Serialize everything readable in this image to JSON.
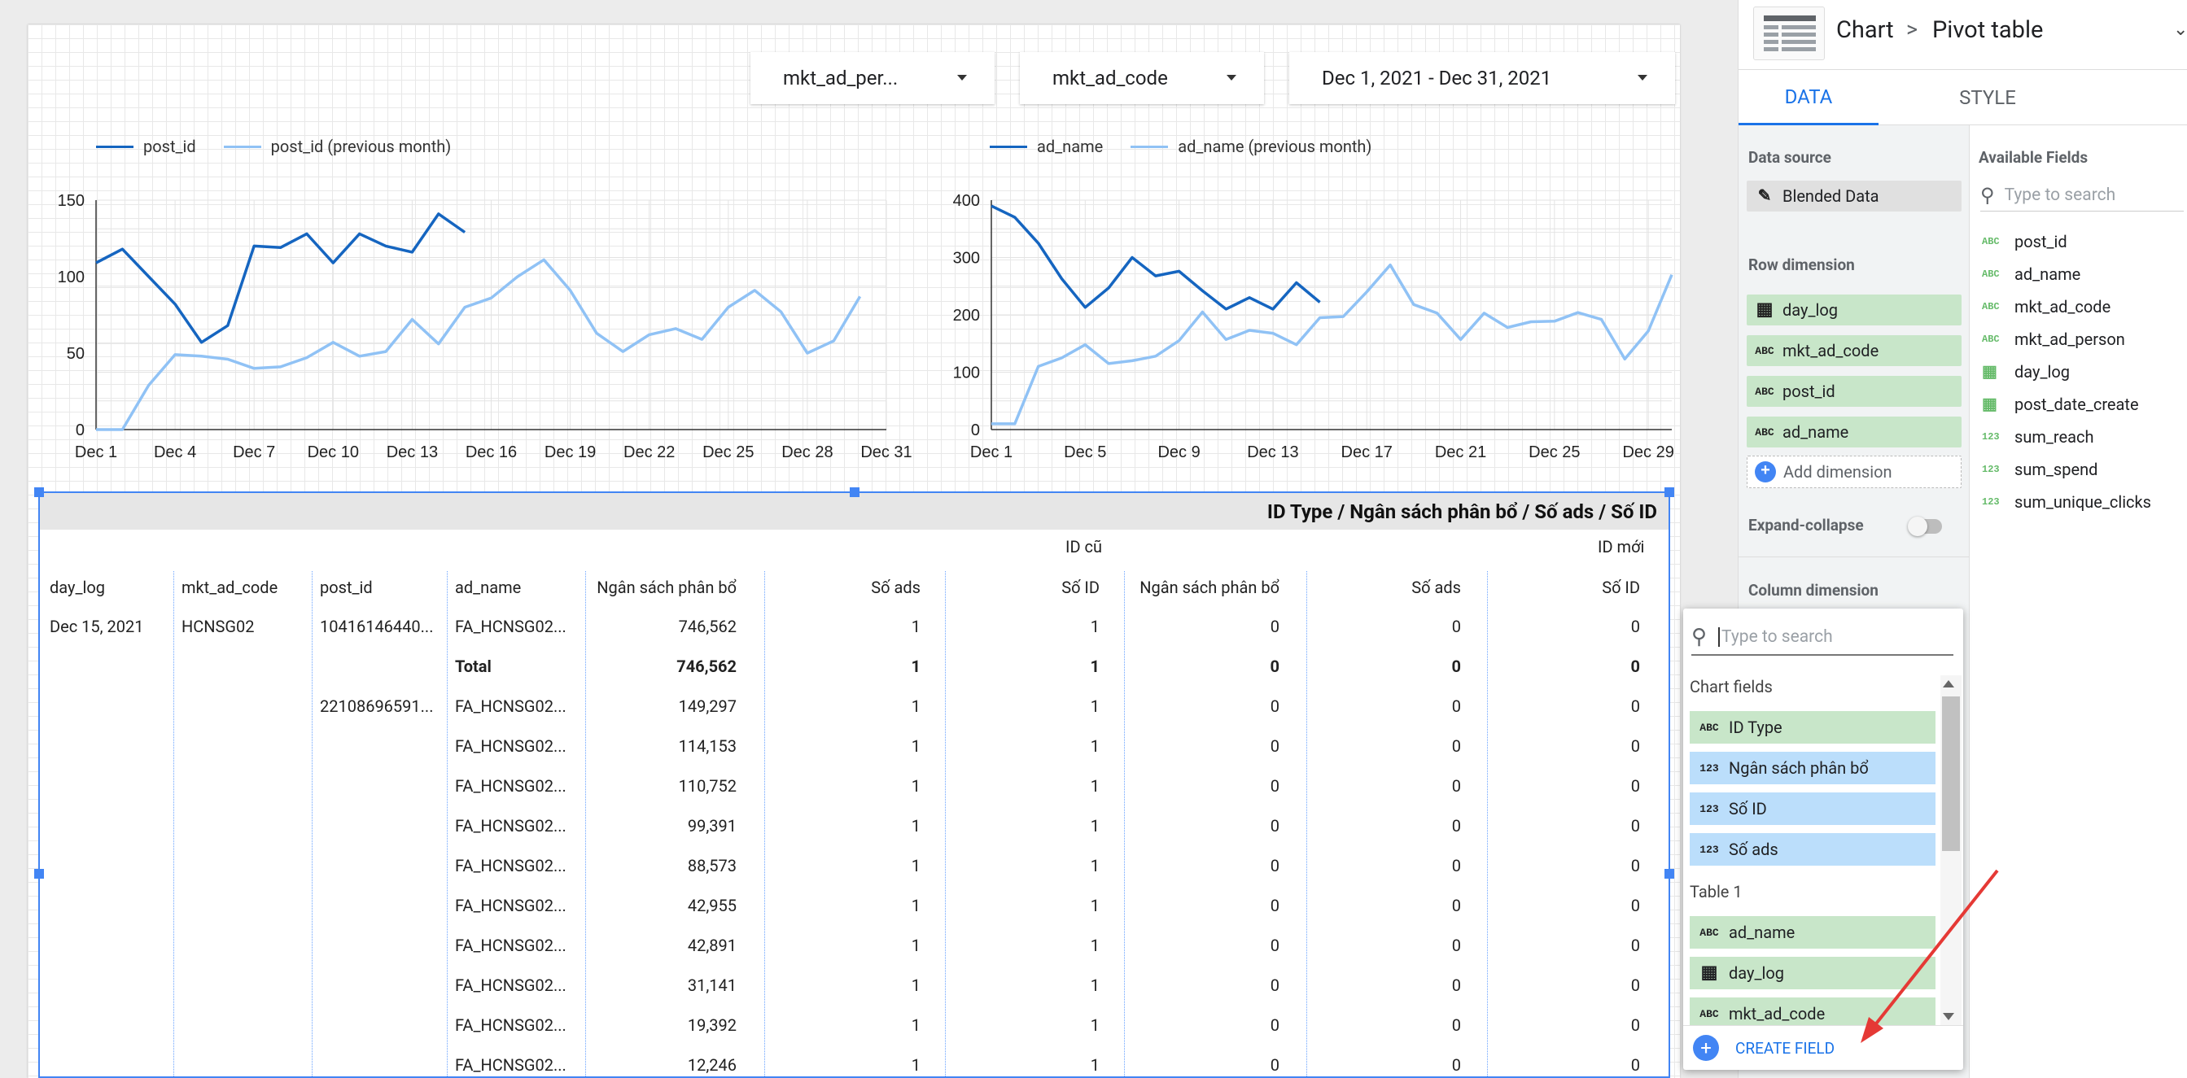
{
  "controls": {
    "person_filter": "mkt_ad_per...",
    "code_filter": "mkt_ad_code",
    "date_range": "Dec 1, 2021 - Dec 31, 2021"
  },
  "chart_data": [
    {
      "type": "line",
      "legend": [
        "post_id",
        "post_id (previous month)"
      ],
      "colors": [
        "#1565c0",
        "#90c2f5"
      ],
      "ylim": [
        0,
        150
      ],
      "yticks": [
        0,
        50,
        100,
        150
      ],
      "xticks": [
        "Dec 1",
        "Dec 4",
        "Dec 7",
        "Dec 10",
        "Dec 13",
        "Dec 16",
        "Dec 19",
        "Dec 22",
        "Dec 25",
        "Dec 28",
        "Dec 31"
      ],
      "x_count": 31,
      "series": [
        {
          "name": "post_id",
          "values": [
            109,
            118,
            100,
            82,
            57,
            68,
            120,
            119,
            128,
            109,
            128,
            120,
            116,
            141,
            129
          ]
        },
        {
          "name": "post_id (previous month)",
          "values": [
            0,
            0,
            29,
            49,
            48,
            46,
            40,
            41,
            47,
            57,
            48,
            51,
            72,
            56,
            80,
            86,
            100,
            111,
            91,
            63,
            51,
            62,
            66,
            59,
            80,
            91,
            77,
            50,
            58,
            87
          ]
        }
      ]
    },
    {
      "type": "line",
      "legend": [
        "ad_name",
        "ad_name (previous month)"
      ],
      "colors": [
        "#1565c0",
        "#90c2f5"
      ],
      "ylim": [
        0,
        400
      ],
      "yticks": [
        0,
        100,
        200,
        300,
        400
      ],
      "xticks": [
        "Dec 1",
        "Dec 5",
        "Dec 9",
        "Dec 13",
        "Dec 17",
        "Dec 21",
        "Dec 25",
        "Dec 29"
      ],
      "x_count": 30,
      "series": [
        {
          "name": "ad_name",
          "values": [
            390,
            370,
            325,
            263,
            213,
            247,
            300,
            268,
            276,
            242,
            210,
            230,
            210,
            256,
            222
          ]
        },
        {
          "name": "ad_name (previous month)",
          "values": [
            10,
            10,
            110,
            125,
            148,
            115,
            120,
            128,
            155,
            205,
            157,
            173,
            168,
            148,
            195,
            197,
            240,
            287,
            218,
            203,
            157,
            203,
            178,
            188,
            189,
            204,
            192,
            123,
            172,
            270
          ]
        }
      ]
    }
  ],
  "pivot": {
    "title": "ID Type / Ngân sách phân bổ / Số ads / Số ID",
    "group_old": "ID cũ",
    "group_new": "ID mới",
    "headers": [
      "day_log",
      "mkt_ad_code",
      "post_id",
      "ad_name",
      "Ngân sách phân bổ",
      "Số ads",
      "Số ID",
      "Ngân sách phân bổ",
      "Số ads",
      "Số ID"
    ],
    "rows": [
      {
        "day": "Dec 15, 2021",
        "code": "HCNSG02",
        "post": "10416146440...",
        "ad": "FA_HCNSG02...",
        "v": [
          "746,562",
          "1",
          "1",
          "0",
          "0",
          "0"
        ],
        "bold": false
      },
      {
        "day": "",
        "code": "",
        "post": "",
        "ad": "Total",
        "v": [
          "746,562",
          "1",
          "1",
          "0",
          "0",
          "0"
        ],
        "bold": true
      },
      {
        "day": "",
        "code": "",
        "post": "22108696591...",
        "ad": "FA_HCNSG02...",
        "v": [
          "149,297",
          "1",
          "1",
          "0",
          "0",
          "0"
        ],
        "bold": false
      },
      {
        "day": "",
        "code": "",
        "post": "",
        "ad": "FA_HCNSG02...",
        "v": [
          "114,153",
          "1",
          "1",
          "0",
          "0",
          "0"
        ],
        "bold": false
      },
      {
        "day": "",
        "code": "",
        "post": "",
        "ad": "FA_HCNSG02...",
        "v": [
          "110,752",
          "1",
          "1",
          "0",
          "0",
          "0"
        ],
        "bold": false
      },
      {
        "day": "",
        "code": "",
        "post": "",
        "ad": "FA_HCNSG02...",
        "v": [
          "99,391",
          "1",
          "1",
          "0",
          "0",
          "0"
        ],
        "bold": false
      },
      {
        "day": "",
        "code": "",
        "post": "",
        "ad": "FA_HCNSG02...",
        "v": [
          "88,573",
          "1",
          "1",
          "0",
          "0",
          "0"
        ],
        "bold": false
      },
      {
        "day": "",
        "code": "",
        "post": "",
        "ad": "FA_HCNSG02...",
        "v": [
          "42,955",
          "1",
          "1",
          "0",
          "0",
          "0"
        ],
        "bold": false
      },
      {
        "day": "",
        "code": "",
        "post": "",
        "ad": "FA_HCNSG02...",
        "v": [
          "42,891",
          "1",
          "1",
          "0",
          "0",
          "0"
        ],
        "bold": false
      },
      {
        "day": "",
        "code": "",
        "post": "",
        "ad": "FA_HCNSG02...",
        "v": [
          "31,141",
          "1",
          "1",
          "0",
          "0",
          "0"
        ],
        "bold": false
      },
      {
        "day": "",
        "code": "",
        "post": "",
        "ad": "FA_HCNSG02...",
        "v": [
          "19,392",
          "1",
          "1",
          "0",
          "0",
          "0"
        ],
        "bold": false
      },
      {
        "day": "",
        "code": "",
        "post": "",
        "ad": "FA_HCNSG02...",
        "v": [
          "12,246",
          "1",
          "1",
          "0",
          "0",
          "0"
        ],
        "bold": false
      }
    ]
  },
  "panel": {
    "breadcrumb_1": "Chart",
    "breadcrumb_sep": ">",
    "breadcrumb_2": "Pivot table",
    "tab_data": "DATA",
    "tab_style": "STYLE",
    "data_source_label": "Data source",
    "data_source": "Blended Data",
    "row_dimension_label": "Row dimension",
    "row_dimensions": [
      {
        "label": "day_log",
        "icon": "calendar-icon"
      },
      {
        "label": "mkt_ad_code",
        "icon": "abc-icon"
      },
      {
        "label": "post_id",
        "icon": "abc-icon"
      },
      {
        "label": "ad_name",
        "icon": "abc-icon"
      }
    ],
    "add_dimension": "Add dimension",
    "expand_collapse": "Expand-collapse",
    "column_dimension_label": "Column dimension",
    "available_fields_label": "Available Fields",
    "search_placeholder": "Type to search",
    "available_fields": [
      {
        "label": "post_id",
        "icon": "ABC"
      },
      {
        "label": "ad_name",
        "icon": "ABC"
      },
      {
        "label": "mkt_ad_code",
        "icon": "ABC"
      },
      {
        "label": "mkt_ad_person",
        "icon": "ABC"
      },
      {
        "label": "day_log",
        "icon": "calendar"
      },
      {
        "label": "post_date_create",
        "icon": "calendar"
      },
      {
        "label": "sum_reach",
        "icon": "123"
      },
      {
        "label": "sum_spend",
        "icon": "123"
      },
      {
        "label": "sum_unique_clicks",
        "icon": "123"
      }
    ]
  },
  "popup": {
    "search_placeholder": "Type to search",
    "chart_fields_label": "Chart fields",
    "chart_fields": [
      {
        "label": "ID Type",
        "icon": "ABC",
        "kind": "green"
      },
      {
        "label": "Ngân sách phân bổ",
        "icon": "123",
        "kind": "blue"
      },
      {
        "label": "Số ID",
        "icon": "123",
        "kind": "blue"
      },
      {
        "label": "Số ads",
        "icon": "123",
        "kind": "blue"
      }
    ],
    "table_label": "Table 1",
    "table_fields": [
      {
        "label": "ad_name",
        "icon": "ABC"
      },
      {
        "label": "day_log",
        "icon": "calendar"
      },
      {
        "label": "mkt_ad_code",
        "icon": "ABC"
      }
    ],
    "create_field": "CREATE FIELD"
  },
  "colors": {
    "accent": "#1a73e8",
    "arrow": "#e53935",
    "selection": "#4285f4"
  }
}
